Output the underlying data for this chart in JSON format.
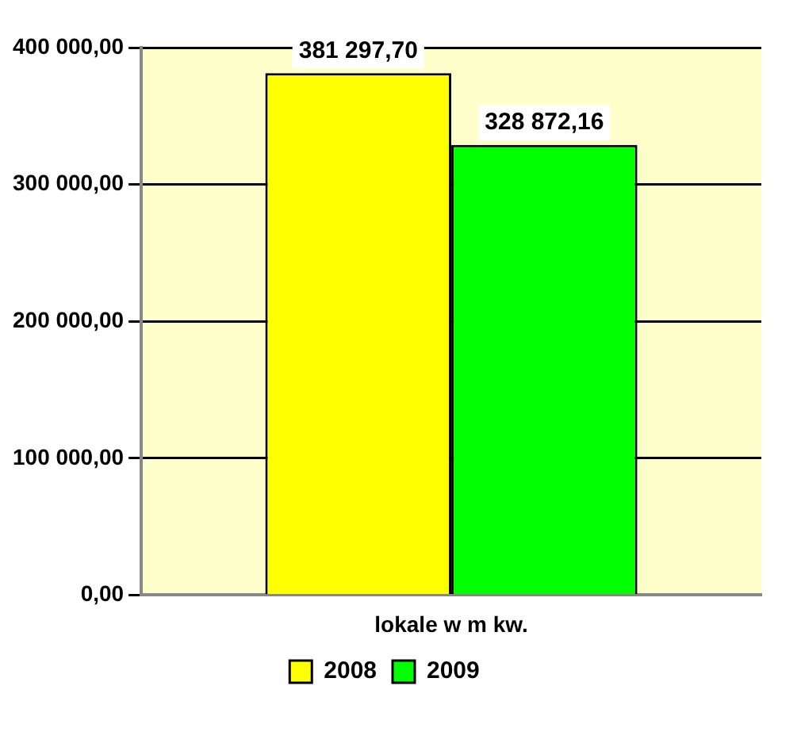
{
  "chart_data": {
    "type": "bar",
    "categories": [
      "lokale w m kw."
    ],
    "series": [
      {
        "name": "2008",
        "color": "#ffff00",
        "values": [
          381297.7
        ],
        "value_labels": [
          "381 297,70"
        ]
      },
      {
        "name": "2009",
        "color": "#00ff00",
        "values": [
          328872.16
        ],
        "value_labels": [
          "328 872,16"
        ]
      }
    ],
    "ylim": [
      0,
      400000
    ],
    "yticks": [
      {
        "value": 0,
        "label": "0,00"
      },
      {
        "value": 100000,
        "label": "100 000,00"
      },
      {
        "value": 200000,
        "label": "200 000,00"
      },
      {
        "value": 300000,
        "label": "300 000,00"
      },
      {
        "value": 400000,
        "label": "400 000,00"
      }
    ],
    "grid": "y",
    "legend": "bottom"
  }
}
